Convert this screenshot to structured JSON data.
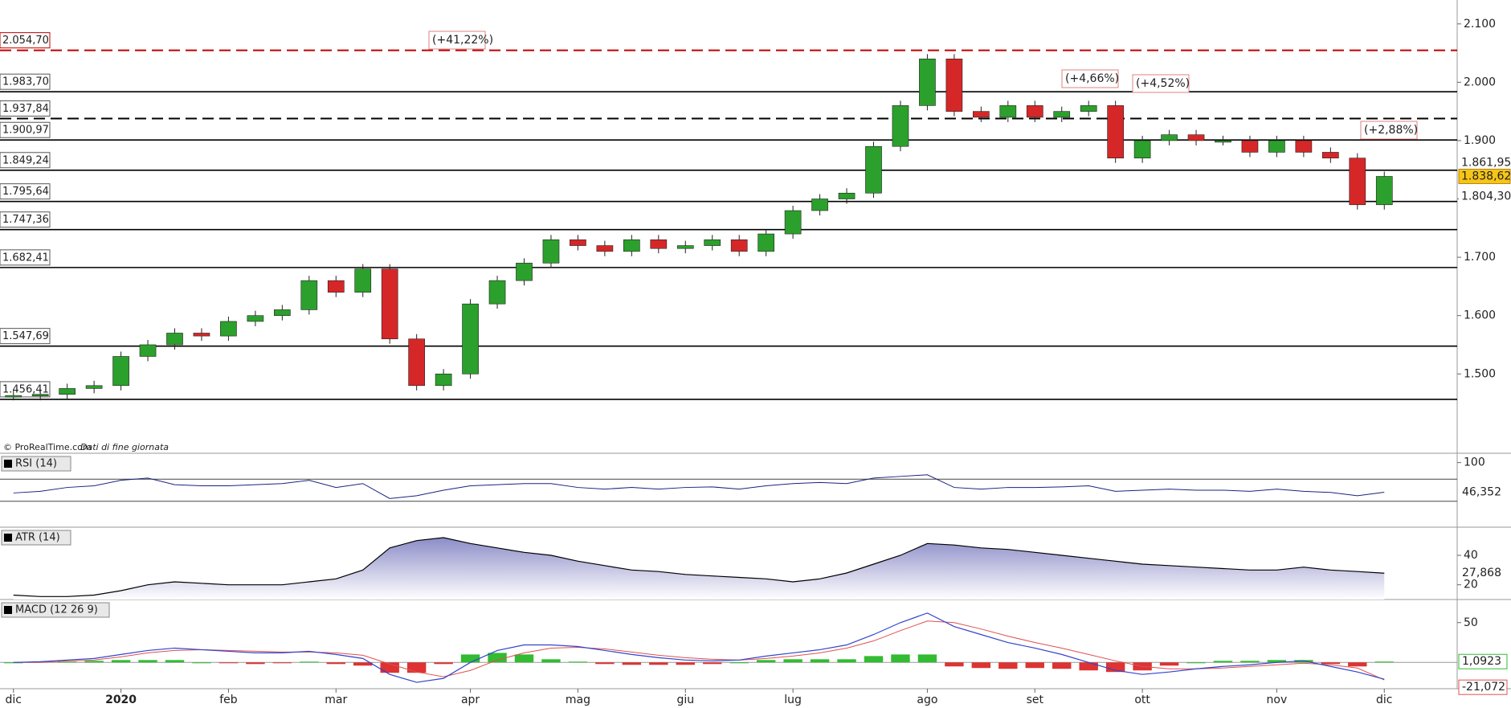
{
  "chart_data": {
    "type": "candlestick",
    "categories": [
      "dic",
      null,
      null,
      null,
      "2020",
      null,
      null,
      null,
      "feb",
      null,
      null,
      null,
      "mar",
      null,
      null,
      null,
      null,
      "apr",
      null,
      null,
      null,
      "mag",
      null,
      null,
      null,
      "giu",
      null,
      null,
      null,
      "lug",
      null,
      null,
      null,
      null,
      "ago",
      null,
      null,
      null,
      "set",
      null,
      null,
      null,
      "ott",
      null,
      null,
      null,
      null,
      "nov",
      null,
      null,
      null,
      "dic"
    ],
    "values": [
      1463,
      1465,
      1475,
      1480,
      1530,
      1550,
      1570,
      1565,
      1590,
      1600,
      1610,
      1660,
      1640,
      1680,
      1560,
      1480,
      1500,
      1620,
      1660,
      1690,
      1730,
      1720,
      1710,
      1730,
      1715,
      1720,
      1730,
      1710,
      1740,
      1780,
      1800,
      1810,
      1890,
      1960,
      2040,
      1950,
      1940,
      1960,
      1940,
      1950,
      1960,
      1870,
      1900,
      1910,
      1900,
      1900,
      1880,
      1900,
      1880,
      1870,
      1790,
      1838.62
    ],
    "colors": {
      "up": "#2ca02c",
      "down": "#d62728"
    },
    "ylim": [
      1364,
      2141
    ],
    "yticks": [
      {
        "value": 2100,
        "label": "2.100"
      },
      {
        "value": 2000,
        "label": "2.000"
      },
      {
        "value": 1900,
        "label": "1.900"
      },
      {
        "value": 1800,
        "label": "1.800"
      },
      {
        "value": 1700,
        "label": "1.700"
      },
      {
        "value": 1600,
        "label": "1.600"
      },
      {
        "value": 1500,
        "label": "1.500"
      }
    ],
    "levels": [
      {
        "value": 2054.7,
        "label": "2.054,70",
        "color": "#c00000",
        "dash": true
      },
      {
        "value": 1983.7,
        "label": "1.983,70",
        "color": "#000000",
        "dash": false
      },
      {
        "value": 1937.84,
        "label": "1.937,84",
        "color": "#000000",
        "dash": true
      },
      {
        "value": 1900.97,
        "label": "1.900,97",
        "color": "#000000",
        "dash": false
      },
      {
        "value": 1849.24,
        "label": "1.849,24",
        "color": "#000000",
        "dash": false
      },
      {
        "value": 1795.64,
        "label": "1.795,64",
        "color": "#000000",
        "dash": false
      },
      {
        "value": 1747.36,
        "label": "1.747,36",
        "color": "#000000",
        "dash": false
      },
      {
        "value": 1682.41,
        "label": "1.682,41",
        "color": "#000000",
        "dash": false
      },
      {
        "value": 1547.69,
        "label": "1.547,69",
        "color": "#000000",
        "dash": false
      },
      {
        "value": 1456.41,
        "label": "1.456,41",
        "color": "#000000",
        "dash": false
      }
    ],
    "price_labels": [
      {
        "value": 1861.95,
        "label": "1.861,95",
        "color": "#e06666"
      },
      {
        "value": 1838.62,
        "label": "1.838,62",
        "color": "#f5c518"
      },
      {
        "value": 1804.3,
        "label": "1.804,30",
        "color": "#3333cc"
      }
    ],
    "annotations": [
      "(+41,22%)",
      "(+4,66%)",
      "(+4,52%)",
      "(+2,88%)"
    ],
    "source": "© ProRealTime.com",
    "source_note": "Dati di fine giornata",
    "rsi": {
      "title": "RSI (14)",
      "ylim": [
        -14,
        114
      ],
      "yticks": [
        100
      ],
      "levels": [
        70,
        30
      ],
      "color": "#1a237e",
      "values": [
        45,
        48,
        55,
        58,
        68,
        72,
        60,
        58,
        58,
        60,
        62,
        68,
        55,
        62,
        35,
        40,
        50,
        58,
        60,
        62,
        62,
        55,
        52,
        55,
        52,
        55,
        56,
        52,
        58,
        62,
        64,
        62,
        72,
        75,
        78,
        55,
        52,
        55,
        55,
        56,
        58,
        48,
        50,
        52,
        50,
        50,
        48,
        52,
        48,
        46,
        40,
        46.352
      ],
      "last_label": "46,352"
    },
    "atr": {
      "title": "ATR (14)",
      "ylim": [
        10,
        58
      ],
      "yticks": [
        40,
        20
      ],
      "color": "#000000",
      "fill": "#8c8cc8",
      "values": [
        13,
        12,
        12,
        13,
        16,
        20,
        22,
        21,
        20,
        20,
        20,
        22,
        24,
        30,
        45,
        50,
        52,
        48,
        45,
        42,
        40,
        36,
        33,
        30,
        29,
        27,
        26,
        25,
        24,
        22,
        24,
        28,
        34,
        40,
        48,
        47,
        45,
        44,
        42,
        40,
        38,
        36,
        34,
        33,
        32,
        31,
        30,
        30,
        32,
        30,
        29,
        27.868
      ],
      "last_label": "27,868"
    },
    "macd": {
      "title": "MACD (12 26 9)",
      "ylim": [
        -33,
        77
      ],
      "yticks": [
        50
      ],
      "line_color": "#3344cc",
      "signal_color": "#e05050",
      "hist_up": "#33bb33",
      "hist_down": "#dd3333",
      "values": [
        0,
        1,
        3,
        5,
        10,
        15,
        18,
        16,
        14,
        12,
        12,
        14,
        10,
        5,
        -15,
        -25,
        -20,
        0,
        15,
        22,
        22,
        20,
        15,
        10,
        6,
        3,
        2,
        3,
        8,
        12,
        16,
        22,
        35,
        50,
        62,
        45,
        35,
        25,
        18,
        10,
        0,
        -10,
        -15,
        -12,
        -8,
        -5,
        -3,
        0,
        2,
        -5,
        -12,
        -21.072
      ],
      "signal": [
        0,
        0,
        2,
        3,
        7,
        12,
        15,
        16,
        15,
        14,
        13,
        13,
        12,
        9,
        -2,
        -12,
        -18,
        -10,
        3,
        12,
        18,
        19,
        17,
        13,
        9,
        6,
        4,
        3,
        5,
        8,
        12,
        18,
        27,
        40,
        52,
        50,
        42,
        33,
        25,
        18,
        10,
        2,
        -5,
        -8,
        -8,
        -7,
        -5,
        -3,
        -1,
        -3,
        -7,
        -22
      ],
      "hist": [
        0,
        1,
        1,
        2,
        3,
        3,
        3,
        0,
        -1,
        -2,
        -1,
        1,
        -2,
        -4,
        -13,
        -13,
        -2,
        10,
        12,
        10,
        4,
        1,
        -2,
        -3,
        -3,
        -3,
        -2,
        0,
        3,
        4,
        4,
        4,
        8,
        10,
        10,
        -5,
        -7,
        -8,
        -7,
        -8,
        -10,
        -12,
        -10,
        -4,
        0,
        2,
        2,
        3,
        3,
        -2,
        -5,
        1.0923
      ],
      "last_label": "-21,072",
      "hist_label": "1,0923"
    }
  }
}
